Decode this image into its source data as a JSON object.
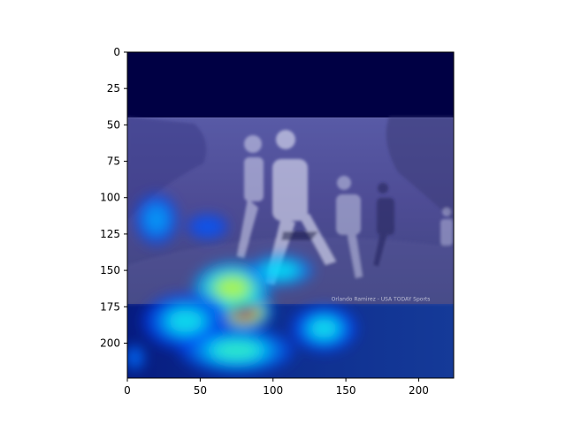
{
  "chart_data": {
    "type": "heatmap",
    "title": "",
    "xlabel": "",
    "ylabel": "",
    "xlim": [
      0,
      224
    ],
    "ylim": [
      224,
      0
    ],
    "y_inverted": true,
    "grid": false,
    "x_ticks": [
      {
        "value": 0,
        "label": "0"
      },
      {
        "value": 50,
        "label": "50"
      },
      {
        "value": 100,
        "label": "100"
      },
      {
        "value": 150,
        "label": "150"
      },
      {
        "value": 200,
        "label": "200"
      }
    ],
    "y_ticks": [
      {
        "value": 0,
        "label": "0"
      },
      {
        "value": 25,
        "label": "25"
      },
      {
        "value": 50,
        "label": "50"
      },
      {
        "value": 75,
        "label": "75"
      },
      {
        "value": 100,
        "label": "100"
      },
      {
        "value": 125,
        "label": "125"
      },
      {
        "value": 150,
        "label": "150"
      },
      {
        "value": 175,
        "label": "175"
      },
      {
        "value": 200,
        "label": "200"
      }
    ],
    "image_content": "cross-country runners photo overlaid with jet-colormap saliency heatmap",
    "image_region": {
      "x": [
        0,
        224
      ],
      "y": [
        45,
        173
      ]
    },
    "watermark": "Orlando Ramirez - USA TODAY Sports",
    "colormap": "jet",
    "hotspots": [
      {
        "x": 80,
        "y": 178,
        "rx": 25,
        "ry": 17,
        "intensity": 1.0
      },
      {
        "x": 72,
        "y": 162,
        "rx": 42,
        "ry": 28,
        "intensity": 0.6
      },
      {
        "x": 105,
        "y": 150,
        "rx": 45,
        "ry": 22,
        "intensity": 0.38
      },
      {
        "x": 40,
        "y": 185,
        "rx": 45,
        "ry": 30,
        "intensity": 0.4
      },
      {
        "x": 135,
        "y": 190,
        "rx": 35,
        "ry": 25,
        "intensity": 0.4
      },
      {
        "x": 75,
        "y": 205,
        "rx": 60,
        "ry": 25,
        "intensity": 0.45
      },
      {
        "x": 20,
        "y": 115,
        "rx": 30,
        "ry": 35,
        "intensity": 0.3
      },
      {
        "x": 55,
        "y": 120,
        "rx": 40,
        "ry": 25,
        "intensity": 0.22
      },
      {
        "x": 5,
        "y": 210,
        "rx": 20,
        "ry": 25,
        "intensity": 0.25
      }
    ],
    "colors": {
      "top_band": "#000044",
      "photo_tint": "#4a4aa0",
      "lower_band": "#0b2a8c",
      "axis": "#000000"
    }
  }
}
